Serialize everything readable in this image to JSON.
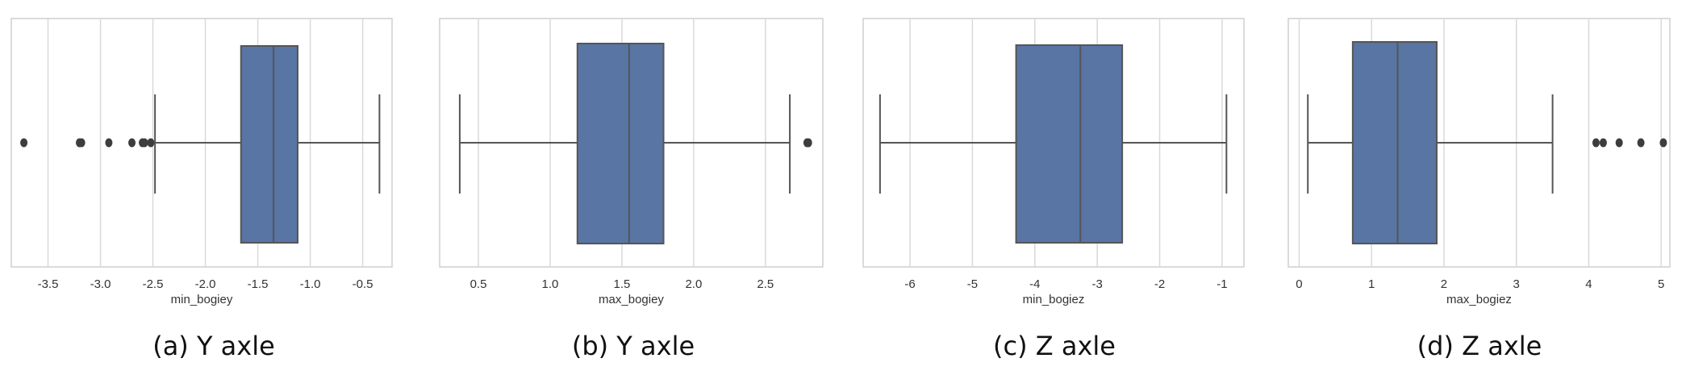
{
  "chart_data": [
    {
      "type": "boxplot",
      "orientation": "horizontal",
      "xlabel": "min_bogiey",
      "caption": "(a)  Y axle",
      "xlim": [
        -3.85,
        -0.22
      ],
      "xticks": [
        -3.5,
        -3.0,
        -2.5,
        -2.0,
        -1.5,
        -1.0,
        -0.5
      ],
      "xtick_labels": [
        "-3.5",
        "-3.0",
        "-2.5",
        "-2.0",
        "-1.5",
        "-1.0",
        "-0.5"
      ],
      "grid": true,
      "box": {
        "whisker_low": -2.48,
        "q1": -1.66,
        "median": -1.35,
        "q3": -1.12,
        "whisker_high": -0.34
      },
      "outliers": [
        -3.73,
        -3.2,
        -3.18,
        -2.92,
        -2.7,
        -2.6,
        -2.58,
        -2.52
      ],
      "box_color": "#5875a4",
      "line_color": "#555555"
    },
    {
      "type": "boxplot",
      "orientation": "horizontal",
      "xlabel": "max_bogiey",
      "caption": "(b)  Y axle",
      "xlim": [
        0.23,
        2.9
      ],
      "xticks": [
        0.5,
        1.0,
        1.5,
        2.0,
        2.5
      ],
      "xtick_labels": [
        "0.5",
        "1.0",
        "1.5",
        "2.0",
        "2.5"
      ],
      "grid": true,
      "box": {
        "whisker_low": 0.37,
        "q1": 1.19,
        "median": 1.55,
        "q3": 1.79,
        "whisker_high": 2.67
      },
      "outliers": [
        2.79,
        2.8
      ],
      "box_color": "#5875a4",
      "line_color": "#555555"
    },
    {
      "type": "boxplot",
      "orientation": "horizontal",
      "xlabel": "min_bogiez",
      "caption": "(c)  Z axle",
      "xlim": [
        -6.75,
        -0.65
      ],
      "xticks": [
        -6,
        -5,
        -4,
        -3,
        -2,
        -1
      ],
      "xtick_labels": [
        "-6",
        "-5",
        "-4",
        "-3",
        "-2",
        "-1"
      ],
      "grid": true,
      "box": {
        "whisker_low": -6.48,
        "q1": -4.3,
        "median": -3.27,
        "q3": -2.6,
        "whisker_high": -0.93
      },
      "outliers": [],
      "box_color": "#5875a4",
      "line_color": "#555555"
    },
    {
      "type": "boxplot",
      "orientation": "horizontal",
      "xlabel": "max_bogiez",
      "caption": "(d)  Z axle",
      "xlim": [
        -0.15,
        5.12
      ],
      "xticks": [
        0,
        1,
        2,
        3,
        4,
        5
      ],
      "xtick_labels": [
        "0",
        "1",
        "2",
        "3",
        "4",
        "5"
      ],
      "grid": true,
      "box": {
        "whisker_low": 0.12,
        "q1": 0.74,
        "median": 1.36,
        "q3": 1.9,
        "whisker_high": 3.5
      },
      "outliers": [
        4.1,
        4.2,
        4.42,
        4.72,
        5.03
      ],
      "box_color": "#5875a4",
      "line_color": "#555555"
    }
  ]
}
